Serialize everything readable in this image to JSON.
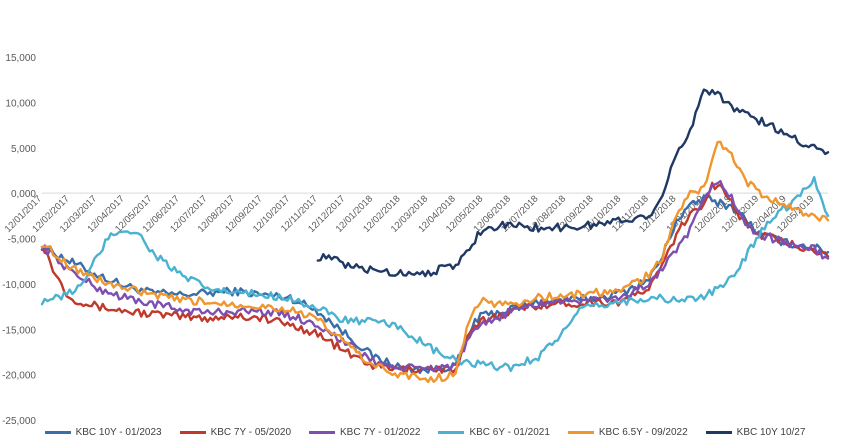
{
  "chart_data": {
    "type": "line",
    "title": "",
    "xlabel": "",
    "ylabel": "",
    "ylim": [
      -25000,
      15000
    ],
    "yticks": [
      -25000,
      -20000,
      -15000,
      -10000,
      -5000,
      0,
      5000,
      10000,
      15000
    ],
    "ytick_labels": [
      "-25,000",
      "-20,000",
      "-15,000",
      "-10,000",
      "-5,000",
      "0,000",
      "5,000",
      "10,000",
      "15,000"
    ],
    "xtick_labels": [
      "12/01/2017",
      "12/02/2017",
      "12/03/2017",
      "12/04/2017",
      "12/05/2017",
      "12/06/2017",
      "12/07/2017",
      "12/08/2017",
      "12/09/2017",
      "12/10/2017",
      "12/11/2017",
      "12/12/2017",
      "12/01/2018",
      "12/02/2018",
      "12/03/2018",
      "12/04/2018",
      "12/05/2018",
      "12/06/2018",
      "12/07/2018",
      "12/08/2018",
      "12/09/2018",
      "12/10/2018",
      "12/11/2018",
      "12/12/2018",
      "12/01/2019",
      "12/02/2019",
      "12/03/2019",
      "12/04/2019",
      "12/05/2019"
    ],
    "grid": false,
    "legend_position": "bottom",
    "x_range": [
      0,
      28.5
    ],
    "series": [
      {
        "name": "KBC 10Y - 01/2023",
        "color": "#3a6ea8",
        "points": [
          [
            0,
            -5800
          ],
          [
            1,
            -7500
          ],
          [
            2,
            -9000
          ],
          [
            3,
            -10200
          ],
          [
            4,
            -11000
          ],
          [
            5,
            -11200
          ],
          [
            6,
            -11000
          ],
          [
            7,
            -10800
          ],
          [
            8,
            -11200
          ],
          [
            9,
            -11500
          ],
          [
            10,
            -13000
          ],
          [
            11,
            -15500
          ],
          [
            12,
            -18000
          ],
          [
            13,
            -19200
          ],
          [
            14,
            -19500
          ],
          [
            15,
            -19000
          ],
          [
            15.3,
            -17000
          ],
          [
            15.7,
            -14000
          ],
          [
            16,
            -13500
          ],
          [
            17,
            -12800
          ],
          [
            18,
            -12000
          ],
          [
            19,
            -11800
          ],
          [
            20,
            -11600
          ],
          [
            21,
            -11000
          ],
          [
            22,
            -9500
          ],
          [
            22.5,
            -7000
          ],
          [
            23,
            -3000
          ],
          [
            23.5,
            -1500
          ],
          [
            24,
            -500
          ],
          [
            24.5,
            -1000
          ],
          [
            25,
            -1500
          ],
          [
            25.5,
            -2800
          ],
          [
            26,
            -4500
          ],
          [
            27,
            -5500
          ],
          [
            28,
            -6000
          ],
          [
            28.5,
            -6500
          ]
        ]
      },
      {
        "name": "KBC 7Y - 05/2020",
        "color": "#c0392b",
        "points": [
          [
            0,
            -5500
          ],
          [
            0.5,
            -9000
          ],
          [
            1,
            -11500
          ],
          [
            2,
            -12500
          ],
          [
            3,
            -13000
          ],
          [
            4,
            -13300
          ],
          [
            5,
            -13600
          ],
          [
            6,
            -13800
          ],
          [
            7,
            -13500
          ],
          [
            8,
            -13800
          ],
          [
            9,
            -14500
          ],
          [
            10,
            -15500
          ],
          [
            11,
            -17500
          ],
          [
            12,
            -19000
          ],
          [
            13,
            -19500
          ],
          [
            14,
            -19300
          ],
          [
            15,
            -19500
          ],
          [
            15.5,
            -15500
          ],
          [
            16,
            -14000
          ],
          [
            17,
            -13000
          ],
          [
            18,
            -12300
          ],
          [
            19,
            -12200
          ],
          [
            20,
            -12000
          ],
          [
            21,
            -12000
          ],
          [
            22,
            -10500
          ],
          [
            22.5,
            -8000
          ],
          [
            23,
            -4500
          ],
          [
            23.5,
            -2500
          ],
          [
            24,
            -1000
          ],
          [
            24.3,
            1000
          ],
          [
            24.7,
            500
          ],
          [
            25,
            -1000
          ],
          [
            25.5,
            -3500
          ],
          [
            26,
            -4500
          ],
          [
            27,
            -5500
          ],
          [
            28,
            -6200
          ],
          [
            28.5,
            -7000
          ]
        ]
      },
      {
        "name": "KBC 7Y - 01/2022",
        "color": "#7d4fb0",
        "points": [
          [
            0,
            -5800
          ],
          [
            1,
            -8500
          ],
          [
            2,
            -10500
          ],
          [
            3,
            -11500
          ],
          [
            4,
            -12200
          ],
          [
            5,
            -12800
          ],
          [
            6,
            -13200
          ],
          [
            7,
            -13000
          ],
          [
            8,
            -13000
          ],
          [
            9,
            -13500
          ],
          [
            10,
            -14500
          ],
          [
            11,
            -16500
          ],
          [
            12,
            -18500
          ],
          [
            13,
            -19300
          ],
          [
            14,
            -19300
          ],
          [
            15,
            -19000
          ],
          [
            15.5,
            -16000
          ],
          [
            16,
            -14500
          ],
          [
            17,
            -13000
          ],
          [
            18,
            -12200
          ],
          [
            19,
            -11800
          ],
          [
            20,
            -11800
          ],
          [
            21,
            -11500
          ],
          [
            22,
            -10000
          ],
          [
            23,
            -6500
          ],
          [
            23.5,
            -4000
          ],
          [
            24,
            -1000
          ],
          [
            24.5,
            1500
          ],
          [
            25,
            -500
          ],
          [
            25.5,
            -3500
          ],
          [
            26,
            -4500
          ],
          [
            27,
            -5500
          ],
          [
            28,
            -6200
          ],
          [
            28.5,
            -7200
          ]
        ]
      },
      {
        "name": "KBC 6Y - 01/2021",
        "color": "#4ab2d0",
        "points": [
          [
            0,
            -11800
          ],
          [
            0.7,
            -11500
          ],
          [
            1.5,
            -10000
          ],
          [
            2,
            -7000
          ],
          [
            2.5,
            -4500
          ],
          [
            3,
            -4000
          ],
          [
            3.5,
            -4500
          ],
          [
            4,
            -6500
          ],
          [
            5,
            -9000
          ],
          [
            6,
            -10500
          ],
          [
            7,
            -11000
          ],
          [
            8,
            -11200
          ],
          [
            9,
            -11500
          ],
          [
            10,
            -12800
          ],
          [
            11,
            -14000
          ],
          [
            12,
            -14200
          ],
          [
            13,
            -14800
          ],
          [
            14,
            -17000
          ],
          [
            15,
            -18500
          ],
          [
            16,
            -19000
          ],
          [
            17,
            -19200
          ],
          [
            18,
            -18000
          ],
          [
            19,
            -15000
          ],
          [
            19.5,
            -13000
          ],
          [
            20,
            -12500
          ],
          [
            21,
            -12000
          ],
          [
            22,
            -11500
          ],
          [
            23,
            -11800
          ],
          [
            24,
            -11500
          ],
          [
            25,
            -9500
          ],
          [
            25.5,
            -7000
          ],
          [
            26,
            -4500
          ],
          [
            26.5,
            -2500
          ],
          [
            27,
            -1500
          ],
          [
            27.5,
            0
          ],
          [
            28,
            1500
          ],
          [
            28.5,
            -2500
          ]
        ]
      },
      {
        "name": "KBC 6.5Y - 09/2022",
        "color": "#f0962e",
        "points": [
          [
            0,
            -5500
          ],
          [
            1,
            -8000
          ],
          [
            2,
            -9500
          ],
          [
            3,
            -10500
          ],
          [
            4,
            -11200
          ],
          [
            5,
            -11800
          ],
          [
            6,
            -12000
          ],
          [
            7,
            -12200
          ],
          [
            8,
            -12500
          ],
          [
            9,
            -12800
          ],
          [
            10,
            -14000
          ],
          [
            11,
            -16500
          ],
          [
            12,
            -19000
          ],
          [
            13,
            -20000
          ],
          [
            14,
            -20500
          ],
          [
            15,
            -20000
          ],
          [
            15.3,
            -16000
          ],
          [
            15.7,
            -12500
          ],
          [
            16,
            -12000
          ],
          [
            17,
            -12300
          ],
          [
            18,
            -11500
          ],
          [
            19,
            -11300
          ],
          [
            20,
            -11000
          ],
          [
            21,
            -10800
          ],
          [
            22,
            -9000
          ],
          [
            22.5,
            -7000
          ],
          [
            23,
            -2500
          ],
          [
            23.5,
            0
          ],
          [
            24,
            500
          ],
          [
            24.5,
            6000
          ],
          [
            25,
            4000
          ],
          [
            25.5,
            1500
          ],
          [
            26,
            0
          ],
          [
            27,
            -1500
          ],
          [
            27.5,
            -2000
          ],
          [
            28,
            -2500
          ],
          [
            28.5,
            -3000
          ]
        ]
      },
      {
        "name": "KBC 10Y 10/27",
        "color": "#1f3864",
        "points": [
          [
            10,
            -7000
          ],
          [
            10.5,
            -7200
          ],
          [
            11,
            -8000
          ],
          [
            12,
            -8500
          ],
          [
            13,
            -8800
          ],
          [
            14,
            -8700
          ],
          [
            15,
            -8000
          ],
          [
            15.5,
            -6000
          ],
          [
            16,
            -3800
          ],
          [
            17,
            -3500
          ],
          [
            18,
            -3800
          ],
          [
            19,
            -3800
          ],
          [
            20,
            -3500
          ],
          [
            21,
            -3000
          ],
          [
            22,
            -2500
          ],
          [
            22.5,
            0
          ],
          [
            23,
            4000
          ],
          [
            23.5,
            7000
          ],
          [
            24,
            11500
          ],
          [
            24.5,
            11000
          ],
          [
            25,
            9500
          ],
          [
            26,
            8000
          ],
          [
            27,
            6500
          ],
          [
            28,
            5000
          ],
          [
            28.5,
            4500
          ]
        ]
      }
    ]
  }
}
